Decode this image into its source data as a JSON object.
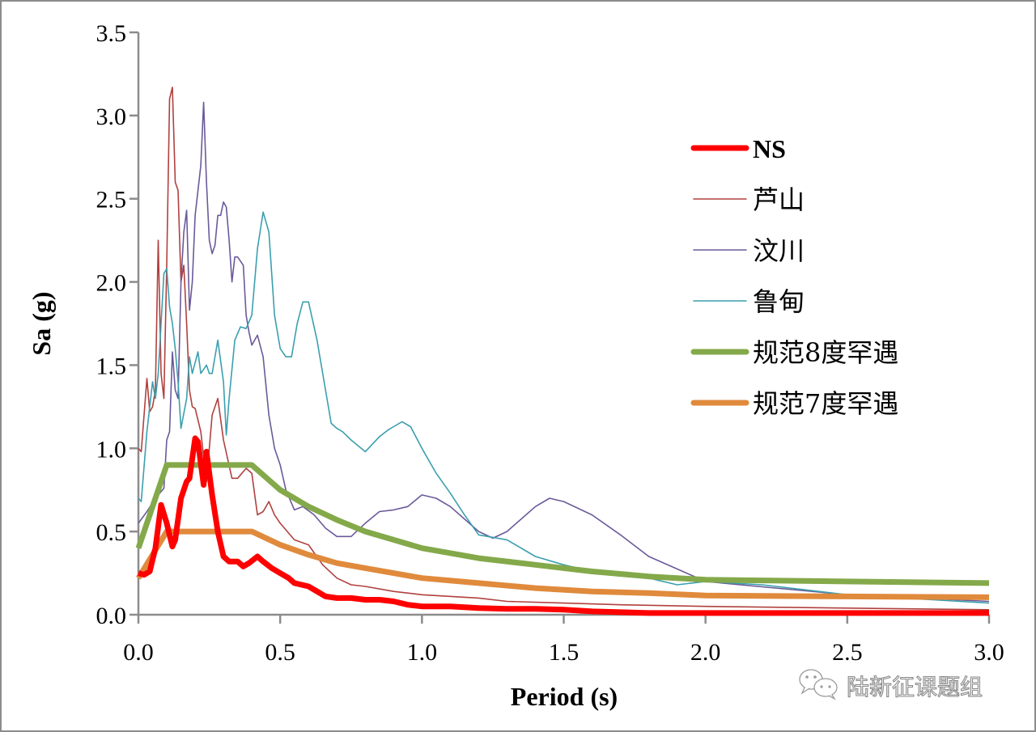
{
  "chart_data": {
    "type": "line",
    "title": "",
    "xlabel": "Period (s)",
    "ylabel": "Sa (g)",
    "xlim": [
      0,
      3.0
    ],
    "ylim": [
      0,
      3.5
    ],
    "xticks": [
      "0.0",
      "0.5",
      "1.0",
      "1.5",
      "2.0",
      "2.5",
      "3.0"
    ],
    "yticks": [
      "0.0",
      "0.5",
      "1.0",
      "1.5",
      "2.0",
      "2.5",
      "3.0",
      "3.5"
    ],
    "grid": false,
    "legend_position": "right",
    "series": [
      {
        "name": "NS",
        "color": "#ff0000",
        "width": "thick",
        "x": [
          0.0,
          0.02,
          0.04,
          0.06,
          0.08,
          0.1,
          0.12,
          0.13,
          0.15,
          0.17,
          0.18,
          0.2,
          0.21,
          0.23,
          0.24,
          0.26,
          0.28,
          0.3,
          0.32,
          0.35,
          0.37,
          0.39,
          0.42,
          0.44,
          0.47,
          0.5,
          0.53,
          0.55,
          0.6,
          0.63,
          0.66,
          0.7,
          0.75,
          0.8,
          0.85,
          0.9,
          0.95,
          1.0,
          1.1,
          1.2,
          1.3,
          1.4,
          1.5,
          1.6,
          1.7,
          1.8,
          2.0,
          2.5,
          3.0
        ],
        "y": [
          0.25,
          0.24,
          0.26,
          0.4,
          0.66,
          0.55,
          0.41,
          0.45,
          0.7,
          0.8,
          0.82,
          1.06,
          1.04,
          0.78,
          0.98,
          0.72,
          0.5,
          0.35,
          0.32,
          0.32,
          0.29,
          0.31,
          0.35,
          0.32,
          0.28,
          0.25,
          0.22,
          0.19,
          0.17,
          0.14,
          0.11,
          0.1,
          0.1,
          0.09,
          0.09,
          0.08,
          0.06,
          0.05,
          0.05,
          0.04,
          0.035,
          0.035,
          0.03,
          0.02,
          0.015,
          0.01,
          0.01,
          0.01,
          0.01
        ]
      },
      {
        "name": "芦山",
        "color": "#b0413e",
        "width": "thin",
        "x": [
          0.0,
          0.01,
          0.03,
          0.04,
          0.05,
          0.06,
          0.07,
          0.08,
          0.09,
          0.1,
          0.11,
          0.12,
          0.13,
          0.14,
          0.15,
          0.16,
          0.17,
          0.18,
          0.19,
          0.2,
          0.22,
          0.24,
          0.26,
          0.28,
          0.3,
          0.33,
          0.35,
          0.38,
          0.4,
          0.42,
          0.44,
          0.46,
          0.48,
          0.5,
          0.55,
          0.6,
          0.65,
          0.7,
          0.75,
          0.8,
          0.9,
          1.0,
          1.2,
          1.3,
          1.5,
          1.7,
          2.0,
          2.5,
          3.0
        ],
        "y": [
          1.0,
          0.98,
          1.42,
          1.22,
          1.25,
          1.35,
          2.25,
          1.45,
          1.3,
          2.1,
          3.1,
          3.17,
          2.6,
          2.55,
          2.0,
          2.1,
          1.75,
          1.35,
          1.25,
          1.24,
          1.1,
          0.8,
          1.2,
          1.3,
          1.05,
          0.82,
          0.82,
          0.88,
          0.85,
          0.6,
          0.62,
          0.68,
          0.6,
          0.55,
          0.45,
          0.42,
          0.3,
          0.22,
          0.18,
          0.17,
          0.14,
          0.12,
          0.1,
          0.08,
          0.07,
          0.06,
          0.05,
          0.04,
          0.03
        ]
      },
      {
        "name": "汶川",
        "color": "#6b5a9a",
        "width": "thin",
        "x": [
          0.0,
          0.03,
          0.06,
          0.09,
          0.1,
          0.11,
          0.12,
          0.13,
          0.14,
          0.15,
          0.16,
          0.17,
          0.18,
          0.19,
          0.2,
          0.22,
          0.23,
          0.24,
          0.25,
          0.26,
          0.27,
          0.28,
          0.29,
          0.3,
          0.31,
          0.32,
          0.33,
          0.34,
          0.35,
          0.37,
          0.38,
          0.39,
          0.4,
          0.42,
          0.44,
          0.46,
          0.48,
          0.5,
          0.52,
          0.55,
          0.58,
          0.62,
          0.66,
          0.7,
          0.75,
          0.8,
          0.85,
          0.9,
          0.95,
          1.0,
          1.05,
          1.1,
          1.2,
          1.25,
          1.3,
          1.4,
          1.45,
          1.5,
          1.6,
          1.7,
          1.8,
          2.0,
          2.5,
          3.0
        ],
        "y": [
          0.55,
          0.62,
          0.7,
          0.76,
          1.05,
          1.1,
          1.58,
          1.35,
          1.3,
          2.0,
          2.3,
          2.43,
          1.83,
          2.0,
          2.4,
          2.7,
          3.08,
          2.6,
          2.25,
          2.17,
          2.22,
          2.4,
          2.4,
          2.48,
          2.45,
          2.25,
          2.0,
          2.15,
          2.15,
          2.1,
          1.8,
          1.7,
          1.62,
          1.68,
          1.55,
          1.2,
          1.0,
          0.9,
          0.75,
          0.63,
          0.65,
          0.6,
          0.52,
          0.47,
          0.47,
          0.55,
          0.62,
          0.63,
          0.65,
          0.72,
          0.7,
          0.65,
          0.5,
          0.46,
          0.5,
          0.65,
          0.7,
          0.68,
          0.6,
          0.48,
          0.35,
          0.2,
          0.12,
          0.08
        ]
      },
      {
        "name": "鲁甸",
        "color": "#3b9fae",
        "width": "thin",
        "x": [
          0.0,
          0.01,
          0.03,
          0.05,
          0.06,
          0.07,
          0.08,
          0.09,
          0.1,
          0.11,
          0.12,
          0.13,
          0.14,
          0.15,
          0.17,
          0.18,
          0.19,
          0.21,
          0.22,
          0.24,
          0.25,
          0.26,
          0.28,
          0.3,
          0.31,
          0.32,
          0.34,
          0.36,
          0.38,
          0.4,
          0.42,
          0.44,
          0.46,
          0.48,
          0.5,
          0.52,
          0.54,
          0.56,
          0.58,
          0.6,
          0.63,
          0.66,
          0.68,
          0.7,
          0.72,
          0.75,
          0.8,
          0.85,
          0.88,
          0.9,
          0.93,
          0.96,
          1.0,
          1.05,
          1.1,
          1.15,
          1.2,
          1.3,
          1.4,
          1.5,
          1.6,
          1.8,
          1.9,
          2.0,
          2.2,
          2.5,
          2.8,
          3.0
        ],
        "y": [
          0.7,
          0.68,
          1.1,
          1.4,
          1.3,
          1.45,
          1.75,
          2.05,
          2.08,
          1.85,
          1.75,
          1.6,
          1.4,
          1.12,
          1.3,
          1.55,
          1.45,
          1.58,
          1.45,
          1.5,
          1.45,
          1.45,
          1.65,
          1.4,
          1.08,
          1.3,
          1.65,
          1.73,
          1.72,
          1.8,
          2.2,
          2.42,
          2.3,
          1.8,
          1.6,
          1.55,
          1.55,
          1.75,
          1.88,
          1.88,
          1.65,
          1.35,
          1.15,
          1.12,
          1.1,
          1.05,
          0.98,
          1.07,
          1.11,
          1.13,
          1.16,
          1.13,
          1.0,
          0.85,
          0.73,
          0.6,
          0.48,
          0.45,
          0.35,
          0.3,
          0.26,
          0.22,
          0.18,
          0.2,
          0.18,
          0.12,
          0.09,
          0.07
        ]
      },
      {
        "name": "规范8度罕遇",
        "color": "#84a94a",
        "width": "thick",
        "x": [
          0.0,
          0.1,
          0.4,
          0.5,
          0.6,
          0.7,
          0.8,
          0.9,
          1.0,
          1.2,
          1.4,
          1.6,
          1.8,
          2.0,
          2.5,
          3.0
        ],
        "y": [
          0.4,
          0.9,
          0.9,
          0.75,
          0.65,
          0.57,
          0.5,
          0.45,
          0.4,
          0.34,
          0.3,
          0.26,
          0.23,
          0.21,
          0.2,
          0.19
        ]
      },
      {
        "name": "规范7度罕遇",
        "color": "#e08a3c",
        "width": "thick",
        "x": [
          0.0,
          0.1,
          0.4,
          0.5,
          0.6,
          0.7,
          0.8,
          0.9,
          1.0,
          1.2,
          1.4,
          1.6,
          1.8,
          2.0,
          2.5,
          3.0
        ],
        "y": [
          0.22,
          0.5,
          0.5,
          0.42,
          0.36,
          0.31,
          0.28,
          0.25,
          0.22,
          0.19,
          0.16,
          0.14,
          0.13,
          0.115,
          0.11,
          0.105
        ]
      }
    ]
  },
  "watermark": {
    "icon": "wechat-icon",
    "text": "陆新征课题组"
  }
}
